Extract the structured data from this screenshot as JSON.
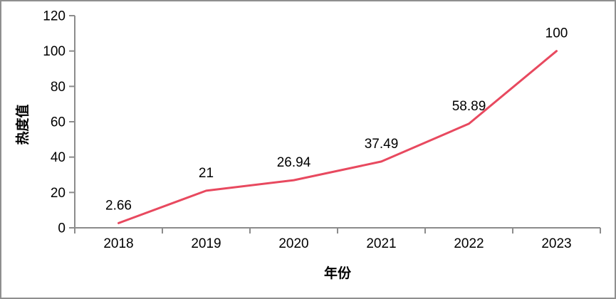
{
  "chart_data": {
    "type": "line",
    "title": "",
    "xlabel": "年份",
    "ylabel": "热度值",
    "categories": [
      "2018",
      "2019",
      "2020",
      "2021",
      "2022",
      "2023"
    ],
    "series": [
      {
        "name": "热度值",
        "values": [
          2.66,
          21,
          26.94,
          37.49,
          58.89,
          100
        ],
        "data_labels": [
          "2.66",
          "21",
          "26.94",
          "37.49",
          "58.89",
          "100"
        ]
      }
    ],
    "ylim": [
      0,
      120
    ],
    "yticks": [
      0,
      20,
      40,
      60,
      80,
      100,
      120
    ],
    "grid": false,
    "legend": "none",
    "colors": {
      "line": "#e8495f",
      "axis": "#8c8c8c",
      "text": "#000000",
      "background": "#ffffff",
      "frame_border": "#8f8f8f"
    }
  }
}
